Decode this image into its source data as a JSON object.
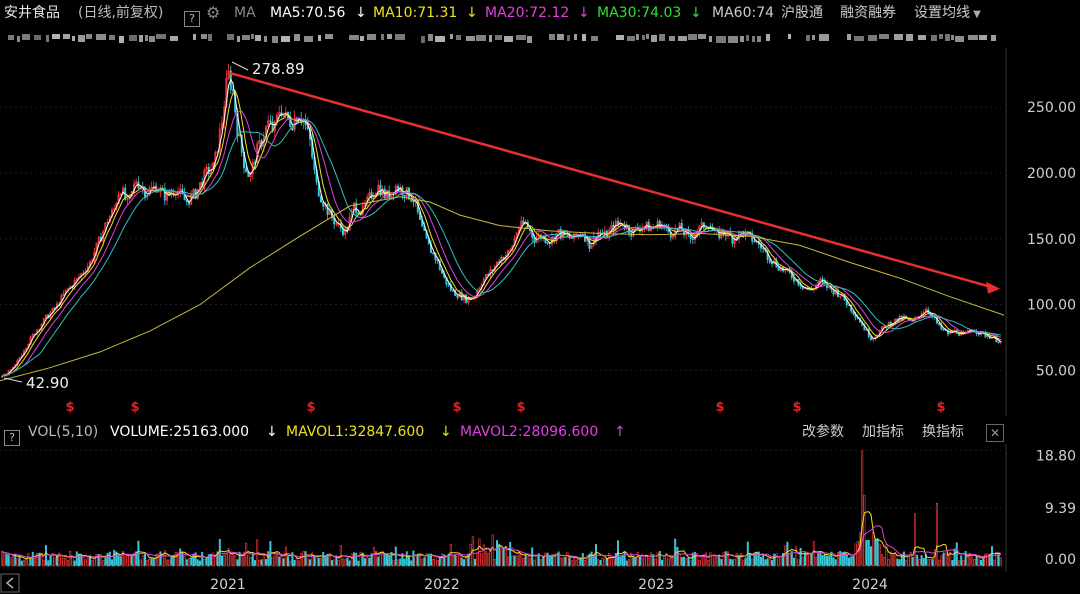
{
  "header": {
    "stock_name": "安井食品",
    "adjust_label": "(日线,前复权)",
    "help_label": "?",
    "gear_icon": "gear-icon",
    "ma_label": "MA",
    "ma5": "MA5:70.56",
    "ma10": "MA10:71.31",
    "ma20": "MA20:72.12",
    "ma30": "MA30:74.03",
    "ma60": "MA60:74",
    "hgt_label": "沪股通",
    "margin_label": "融资融券",
    "ma_settings_label": "设置均线",
    "colors": {
      "ma5": "#ffffff",
      "ma10": "#f0e020",
      "ma20": "#e040e0",
      "ma30": "#30e030",
      "ma60": "#cccccc"
    }
  },
  "volume": {
    "help_label": "?",
    "indicator": "VOL(5,10)",
    "volume_value": "VOLUME:25163.000",
    "mavol1": "MAVOL1:32847.600",
    "mavol2": "MAVOL2:28096.600",
    "change_params": "改参数",
    "add_indicator": "加指标",
    "switch_indicator": "换指标",
    "close_icon": "close-icon",
    "axis_labels": [
      "18.80",
      "9.39",
      "0.00"
    ]
  },
  "price_axis": {
    "labels": [
      "250.00",
      "200.00",
      "150.00",
      "100.00",
      "50.00"
    ]
  },
  "annotations": {
    "high_label": "278.89",
    "low_label": "42.90",
    "marker_symbol": "$"
  },
  "time_axis": {
    "labels": [
      "2021",
      "2022",
      "2023",
      "2024"
    ],
    "scroll_left_icon": "chevron-left-icon"
  },
  "chart_data": {
    "type": "candlestick",
    "price_range": [
      32,
      292
    ],
    "price_ticks": [
      250,
      200,
      150,
      100,
      50
    ],
    "high": 278.89,
    "low": 42.9,
    "close_path": [
      [
        0,
        45
      ],
      [
        6,
        47
      ],
      [
        14,
        52
      ],
      [
        24,
        66
      ],
      [
        34,
        78
      ],
      [
        46,
        90
      ],
      [
        56,
        98
      ],
      [
        66,
        110
      ],
      [
        78,
        120
      ],
      [
        90,
        132
      ],
      [
        100,
        150
      ],
      [
        108,
        165
      ],
      [
        114,
        172
      ],
      [
        120,
        190
      ],
      [
        128,
        175
      ],
      [
        136,
        195
      ],
      [
        146,
        185
      ],
      [
        156,
        190
      ],
      [
        166,
        182
      ],
      [
        176,
        188
      ],
      [
        186,
        178
      ],
      [
        196,
        185
      ],
      [
        206,
        200
      ],
      [
        214,
        205
      ],
      [
        222,
        240
      ],
      [
        228,
        276
      ],
      [
        233,
        262
      ],
      [
        238,
        230
      ],
      [
        244,
        208
      ],
      [
        250,
        196
      ],
      [
        256,
        215
      ],
      [
        262,
        225
      ],
      [
        268,
        238
      ],
      [
        274,
        232
      ],
      [
        280,
        250
      ],
      [
        286,
        242
      ],
      [
        292,
        238
      ],
      [
        298,
        246
      ],
      [
        304,
        240
      ],
      [
        310,
        224
      ],
      [
        316,
        192
      ],
      [
        322,
        180
      ],
      [
        330,
        168
      ],
      [
        338,
        160
      ],
      [
        346,
        155
      ],
      [
        354,
        175
      ],
      [
        362,
        170
      ],
      [
        370,
        182
      ],
      [
        378,
        190
      ],
      [
        386,
        182
      ],
      [
        396,
        190
      ],
      [
        406,
        185
      ],
      [
        414,
        180
      ],
      [
        420,
        162
      ],
      [
        428,
        145
      ],
      [
        436,
        135
      ],
      [
        444,
        120
      ],
      [
        452,
        110
      ],
      [
        460,
        107
      ],
      [
        466,
        104
      ],
      [
        474,
        106
      ],
      [
        482,
        118
      ],
      [
        490,
        124
      ],
      [
        500,
        135
      ],
      [
        510,
        140
      ],
      [
        518,
        158
      ],
      [
        526,
        162
      ],
      [
        534,
        150
      ],
      [
        542,
        152
      ],
      [
        550,
        148
      ],
      [
        558,
        155
      ],
      [
        566,
        152
      ],
      [
        574,
        150
      ],
      [
        582,
        156
      ],
      [
        590,
        145
      ],
      [
        598,
        155
      ],
      [
        606,
        152
      ],
      [
        614,
        160
      ],
      [
        622,
        162
      ],
      [
        632,
        155
      ],
      [
        642,
        160
      ],
      [
        652,
        158
      ],
      [
        660,
        162
      ],
      [
        670,
        154
      ],
      [
        680,
        158
      ],
      [
        690,
        150
      ],
      [
        700,
        158
      ],
      [
        708,
        162
      ],
      [
        716,
        152
      ],
      [
        724,
        156
      ],
      [
        732,
        150
      ],
      [
        742,
        155
      ],
      [
        752,
        150
      ],
      [
        760,
        145
      ],
      [
        770,
        135
      ],
      [
        780,
        128
      ],
      [
        790,
        123
      ],
      [
        800,
        116
      ],
      [
        810,
        110
      ],
      [
        820,
        118
      ],
      [
        830,
        112
      ],
      [
        840,
        108
      ],
      [
        850,
        98
      ],
      [
        858,
        90
      ],
      [
        866,
        80
      ],
      [
        872,
        74
      ],
      [
        880,
        80
      ],
      [
        888,
        85
      ],
      [
        896,
        88
      ],
      [
        904,
        90
      ],
      [
        912,
        86
      ],
      [
        920,
        93
      ],
      [
        926,
        97
      ],
      [
        932,
        92
      ],
      [
        940,
        82
      ],
      [
        948,
        78
      ],
      [
        956,
        80
      ],
      [
        964,
        76
      ],
      [
        972,
        82
      ],
      [
        980,
        78
      ],
      [
        990,
        76
      ],
      [
        1000,
        72
      ],
      [
        1004,
        70
      ]
    ],
    "ma_long_path": [
      [
        0,
        42
      ],
      [
        50,
        52
      ],
      [
        100,
        64
      ],
      [
        150,
        80
      ],
      [
        200,
        100
      ],
      [
        250,
        128
      ],
      [
        300,
        152
      ],
      [
        350,
        175
      ],
      [
        400,
        182
      ],
      [
        430,
        178
      ],
      [
        460,
        168
      ],
      [
        500,
        160
      ],
      [
        550,
        156
      ],
      [
        600,
        154
      ],
      [
        650,
        153
      ],
      [
        700,
        154
      ],
      [
        750,
        152
      ],
      [
        800,
        145
      ],
      [
        850,
        132
      ],
      [
        900,
        120
      ],
      [
        950,
        106
      ],
      [
        1004,
        92
      ]
    ],
    "trendline": {
      "from": [
        230,
        276
      ],
      "to": [
        1000,
        112
      ]
    },
    "markers_x": [
      70,
      135,
      311,
      457,
      521,
      720,
      797,
      941
    ],
    "volume_range": [
      0,
      19.5
    ],
    "x_ticks": [
      {
        "label": "2021",
        "x": 228
      },
      {
        "label": "2022",
        "x": 442
      },
      {
        "label": "2023",
        "x": 656
      },
      {
        "label": "2024",
        "x": 870
      }
    ]
  }
}
